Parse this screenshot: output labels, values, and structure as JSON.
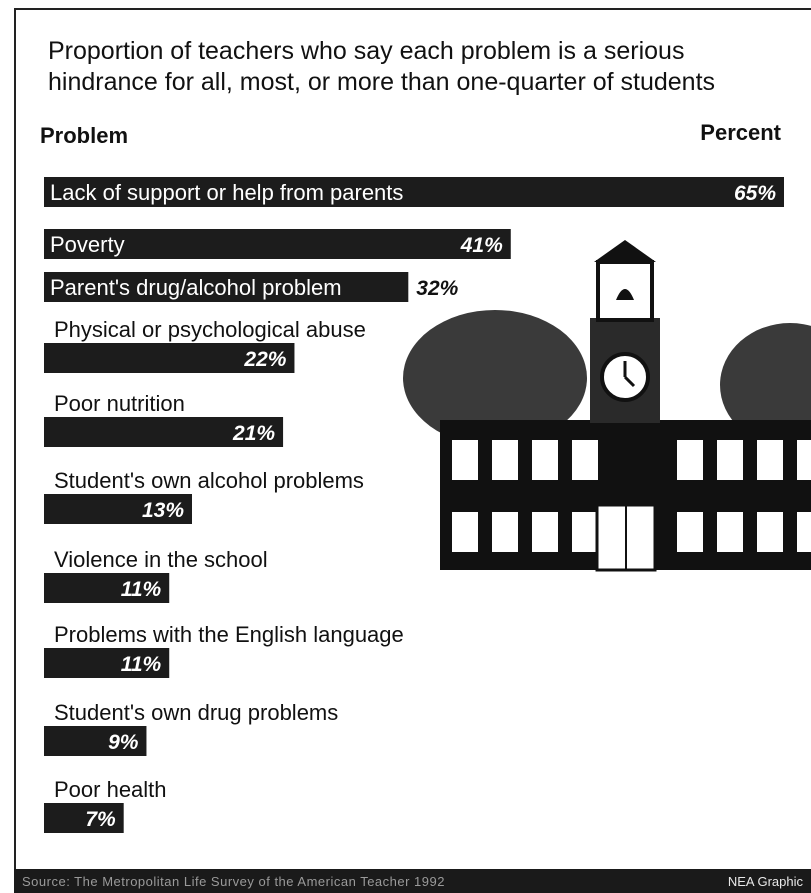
{
  "title": "Proportion of teachers who say each problem is a serious hindrance for all, most, or more than one-quarter of students",
  "headers": {
    "problem": "Problem",
    "percent": "Percent"
  },
  "chart_data": {
    "type": "bar",
    "orientation": "horizontal",
    "categories": [
      "Lack of support or help from parents",
      "Poverty",
      "Parent's drug/alcohol problem",
      "Physical or psychological abuse",
      "Poor nutrition",
      "Student's own alcohol problems",
      "Violence in the school",
      "Problems with the English language",
      "Student's own drug problems",
      "Poor health"
    ],
    "values": [
      65,
      41,
      32,
      22,
      21,
      13,
      11,
      11,
      9,
      7
    ],
    "value_labels": [
      "65%",
      "41%",
      "32%",
      "22%",
      "21%",
      "13%",
      "11%",
      "11%",
      "9%",
      "7%"
    ],
    "label_inside_bar": [
      true,
      true,
      true,
      false,
      false,
      false,
      false,
      false,
      false,
      false
    ],
    "bar_color": "#1c1c1c",
    "grid": false
  },
  "footer": {
    "source": "Source: The Metropolitan Life Survey of the American Teacher 1992",
    "credit": "NEA Graphic"
  },
  "illustration": "school-building-with-clock-tower"
}
